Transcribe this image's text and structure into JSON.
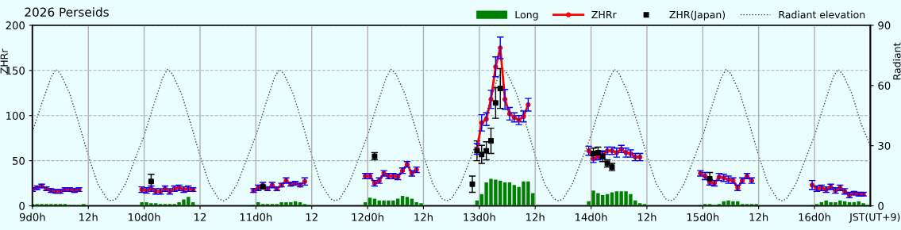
{
  "chart_data": {
    "type": "line",
    "title": "2026 Perseids",
    "ylabel": "ZHRr",
    "y2label": "Radiant",
    "xlabel": "JST(UT+9)",
    "xlim": [
      "2026-08-09T00:00",
      "2026-08-16T12:00"
    ],
    "ylim": [
      0,
      200
    ],
    "y2lim": [
      0,
      90
    ],
    "xticks": [
      {
        "value": "2026-08-09T00:00",
        "label": "9d0h"
      },
      {
        "value": "2026-08-09T12:00",
        "label": "12h"
      },
      {
        "value": "2026-08-10T00:00",
        "label": "10d0h"
      },
      {
        "value": "2026-08-10T12:00",
        "label": "12"
      },
      {
        "value": "2026-08-11T00:00",
        "label": "11d0h"
      },
      {
        "value": "2026-08-11T12:00",
        "label": "12"
      },
      {
        "value": "2026-08-12T00:00",
        "label": "12d0h"
      },
      {
        "value": "2026-08-12T12:00",
        "label": "12h"
      },
      {
        "value": "2026-08-13T00:00",
        "label": "13d0h"
      },
      {
        "value": "2026-08-13T12:00",
        "label": "12h"
      },
      {
        "value": "2026-08-14T00:00",
        "label": "14d0h"
      },
      {
        "value": "2026-08-14T12:00",
        "label": "12h"
      },
      {
        "value": "2026-08-15T00:00",
        "label": "15d0h"
      },
      {
        "value": "2026-08-15T12:00",
        "label": "12h"
      },
      {
        "value": "2026-08-16T00:00",
        "label": "16d0h"
      }
    ],
    "yticks": [
      0,
      50,
      100,
      150,
      200
    ],
    "y2ticks": [
      0,
      30,
      60,
      90
    ],
    "grid": true,
    "legend": "top right",
    "series": [
      {
        "name": "Long",
        "type": "bar",
        "color": "#008000",
        "x": [
          "2026-08-09T00:00",
          "2026-08-09T01:00",
          "2026-08-09T02:00",
          "2026-08-09T03:00",
          "2026-08-09T04:00",
          "2026-08-09T05:00",
          "2026-08-09T06:00",
          "2026-08-09T07:00",
          "2026-08-09T08:00",
          "2026-08-09T09:00",
          "2026-08-09T10:00",
          "2026-08-09T11:00",
          "2026-08-09T23:30",
          "2026-08-10T00:30",
          "2026-08-10T01:30",
          "2026-08-10T02:30",
          "2026-08-10T03:30",
          "2026-08-10T04:30",
          "2026-08-10T05:30",
          "2026-08-10T06:30",
          "2026-08-10T07:30",
          "2026-08-10T08:30",
          "2026-08-10T09:30",
          "2026-08-10T10:30",
          "2026-08-10T23:30",
          "2026-08-11T00:30",
          "2026-08-11T01:30",
          "2026-08-11T02:30",
          "2026-08-11T03:30",
          "2026-08-11T04:30",
          "2026-08-11T05:30",
          "2026-08-11T06:30",
          "2026-08-11T07:30",
          "2026-08-11T08:30",
          "2026-08-11T09:30",
          "2026-08-11T10:30",
          "2026-08-11T11:30",
          "2026-08-11T23:30",
          "2026-08-12T00:30",
          "2026-08-12T01:30",
          "2026-08-12T02:30",
          "2026-08-12T03:30",
          "2026-08-12T04:30",
          "2026-08-12T05:30",
          "2026-08-12T06:30",
          "2026-08-12T07:30",
          "2026-08-12T08:30",
          "2026-08-12T09:30",
          "2026-08-12T10:30",
          "2026-08-12T11:30",
          "2026-08-12T23:30",
          "2026-08-13T00:30",
          "2026-08-13T01:30",
          "2026-08-13T02:30",
          "2026-08-13T03:30",
          "2026-08-13T04:30",
          "2026-08-13T05:30",
          "2026-08-13T06:30",
          "2026-08-13T07:30",
          "2026-08-13T08:30",
          "2026-08-13T09:30",
          "2026-08-13T10:30",
          "2026-08-13T11:30",
          "2026-08-13T23:30",
          "2026-08-14T00:30",
          "2026-08-14T01:30",
          "2026-08-14T02:30",
          "2026-08-14T03:30",
          "2026-08-14T04:30",
          "2026-08-14T05:30",
          "2026-08-14T06:30",
          "2026-08-14T07:30",
          "2026-08-14T08:30",
          "2026-08-14T09:30",
          "2026-08-14T10:30",
          "2026-08-14T11:30",
          "2026-08-14T23:30",
          "2026-08-15T00:30",
          "2026-08-15T01:30",
          "2026-08-15T02:30",
          "2026-08-15T03:30",
          "2026-08-15T04:30",
          "2026-08-15T05:30",
          "2026-08-15T06:30",
          "2026-08-15T07:30",
          "2026-08-15T08:30",
          "2026-08-15T09:30",
          "2026-08-15T10:30",
          "2026-08-15T11:30",
          "2026-08-15T23:30",
          "2026-08-16T00:30",
          "2026-08-16T01:30",
          "2026-08-16T02:30",
          "2026-08-16T03:30",
          "2026-08-16T04:30",
          "2026-08-16T05:30",
          "2026-08-16T06:30",
          "2026-08-16T07:30",
          "2026-08-16T08:30",
          "2026-08-16T09:30",
          "2026-08-16T10:30",
          "2026-08-16T11:30"
        ],
        "values": [
          2,
          2,
          2,
          2,
          2,
          2,
          2,
          2,
          1,
          1,
          1,
          2,
          4,
          4,
          3,
          3,
          2,
          2,
          2,
          2,
          4,
          7,
          10,
          4,
          1,
          4,
          2,
          2,
          2,
          2,
          4,
          4,
          4,
          5,
          4,
          2,
          1,
          4,
          9,
          8,
          6,
          6,
          6,
          6,
          8,
          11,
          10,
          8,
          4,
          3,
          6,
          13,
          26,
          30,
          29,
          28,
          26,
          26,
          23,
          21,
          27,
          27,
          14,
          5,
          17,
          14,
          12,
          13,
          15,
          16,
          16,
          16,
          13,
          6,
          3,
          2,
          1,
          2,
          2,
          1,
          2,
          5,
          6,
          5,
          5,
          2,
          2,
          2,
          2,
          1,
          2,
          4,
          6,
          4,
          4,
          6,
          5,
          4,
          4,
          5,
          3,
          1
        ]
      },
      {
        "name": "ZHRr",
        "color": "#ff0000",
        "marker": "circle",
        "line_style": "solid",
        "x": [
          "2026-08-09T00:00",
          "2026-08-09T01:00",
          "2026-08-09T02:00",
          "2026-08-09T03:00",
          "2026-08-09T04:00",
          "2026-08-09T05:00",
          "2026-08-09T06:00",
          "2026-08-09T07:00",
          "2026-08-09T08:00",
          "2026-08-09T09:00",
          "2026-08-09T10:00",
          null,
          "2026-08-09T23:30",
          "2026-08-10T00:30",
          "2026-08-10T01:30",
          "2026-08-10T02:30",
          "2026-08-10T03:30",
          "2026-08-10T04:30",
          "2026-08-10T05:30",
          "2026-08-10T06:30",
          "2026-08-10T07:30",
          "2026-08-10T08:30",
          "2026-08-10T09:30",
          "2026-08-10T10:30",
          null,
          "2026-08-10T23:30",
          "2026-08-11T00:30",
          "2026-08-11T01:30",
          "2026-08-11T02:30",
          "2026-08-11T03:30",
          "2026-08-11T04:30",
          "2026-08-11T05:30",
          "2026-08-11T06:30",
          "2026-08-11T07:30",
          "2026-08-11T08:30",
          "2026-08-11T09:30",
          "2026-08-11T10:30",
          null,
          "2026-08-11T23:30",
          "2026-08-12T00:30",
          "2026-08-12T01:30",
          "2026-08-12T02:30",
          "2026-08-12T03:30",
          "2026-08-12T04:30",
          "2026-08-12T05:30",
          "2026-08-12T06:30",
          "2026-08-12T07:30",
          "2026-08-12T08:30",
          "2026-08-12T09:30",
          "2026-08-12T10:30",
          null,
          "2026-08-12T23:30",
          "2026-08-13T00:30",
          "2026-08-13T01:30",
          "2026-08-13T02:30",
          "2026-08-13T03:30",
          "2026-08-13T04:30",
          "2026-08-13T05:30",
          "2026-08-13T06:30",
          "2026-08-13T07:30",
          "2026-08-13T08:30",
          "2026-08-13T09:30",
          "2026-08-13T10:30",
          null,
          "2026-08-13T23:30",
          "2026-08-14T00:30",
          "2026-08-14T01:30",
          "2026-08-14T02:30",
          "2026-08-14T03:30",
          "2026-08-14T04:30",
          "2026-08-14T05:30",
          "2026-08-14T06:30",
          "2026-08-14T07:30",
          "2026-08-14T08:30",
          "2026-08-14T09:30",
          "2026-08-14T10:30",
          null,
          "2026-08-14T23:30",
          "2026-08-15T00:30",
          "2026-08-15T01:30",
          "2026-08-15T02:30",
          "2026-08-15T03:30",
          "2026-08-15T04:30",
          "2026-08-15T05:30",
          "2026-08-15T06:30",
          "2026-08-15T07:30",
          "2026-08-15T08:30",
          "2026-08-15T09:30",
          "2026-08-15T10:30",
          null,
          "2026-08-15T23:30",
          "2026-08-16T00:30",
          "2026-08-16T01:30",
          "2026-08-16T02:30",
          "2026-08-16T03:30",
          "2026-08-16T04:30",
          "2026-08-16T05:30",
          "2026-08-16T06:30",
          "2026-08-16T07:30",
          "2026-08-16T08:30",
          "2026-08-16T09:30",
          "2026-08-16T10:30"
        ],
        "values": [
          18,
          20,
          22,
          19,
          17,
          16,
          16,
          18,
          18,
          17,
          18,
          null,
          18,
          17,
          19,
          16,
          16,
          19,
          16,
          19,
          20,
          18,
          19,
          18,
          null,
          17,
          20,
          23,
          19,
          23,
          19,
          23,
          28,
          24,
          25,
          23,
          27,
          null,
          33,
          33,
          25,
          28,
          36,
          33,
          33,
          32,
          39,
          46,
          36,
          40,
          null,
          63,
          92,
          96,
          118,
          154,
          175,
          118,
          102,
          98,
          95,
          99,
          112,
          null,
          61,
          52,
          55,
          56,
          61,
          61,
          59,
          63,
          59,
          58,
          54,
          54,
          null,
          36,
          33,
          26,
          25,
          32,
          31,
          29,
          28,
          20,
          28,
          33,
          28,
          null,
          23,
          19,
          20,
          18,
          21,
          17,
          20,
          16,
          12,
          14,
          13,
          13
        ],
        "errors": [
          2,
          2,
          2,
          2,
          2,
          2,
          2,
          2,
          2,
          2,
          2,
          null,
          3,
          3,
          3,
          3,
          3,
          3,
          3,
          3,
          3,
          3,
          3,
          2,
          null,
          2,
          3,
          3,
          2,
          3,
          2,
          2,
          3,
          2,
          2,
          2,
          4,
          null,
          3,
          3,
          3,
          3,
          3,
          3,
          3,
          3,
          3,
          3,
          3,
          3,
          null,
          6,
          9,
          7,
          10,
          11,
          12,
          11,
          7,
          5,
          5,
          6,
          7,
          null,
          5,
          4,
          4,
          4,
          4,
          4,
          5,
          4,
          5,
          4,
          4,
          4,
          null,
          3,
          4,
          3,
          3,
          4,
          4,
          4,
          3,
          3,
          3,
          3,
          3,
          null,
          5,
          3,
          3,
          3,
          3,
          3,
          3,
          3,
          3,
          2,
          2,
          2
        ]
      },
      {
        "name": "ZHR(Japan)",
        "type": "scatter",
        "color": "#000000",
        "marker": "square",
        "x": [
          "2026-08-10T01:30",
          "2026-08-11T01:30",
          "2026-08-12T01:30",
          "2026-08-12T22:30",
          "2026-08-12T23:30",
          "2026-08-13T00:30",
          "2026-08-13T01:30",
          "2026-08-13T02:30",
          "2026-08-13T03:30",
          "2026-08-13T04:30",
          "2026-08-14T00:30",
          "2026-08-14T01:30",
          "2026-08-14T02:30",
          "2026-08-14T03:30",
          "2026-08-14T04:30",
          "2026-08-15T01:30"
        ],
        "values": [
          27,
          21,
          55,
          24,
          61,
          57,
          61,
          72,
          114,
          130,
          58,
          59,
          55,
          47,
          43,
          30
        ],
        "errors": [
          8,
          2,
          4,
          9,
          11,
          10,
          10,
          14,
          17,
          22,
          6,
          6,
          6,
          4,
          4,
          7
        ]
      },
      {
        "name": "Radiant elevation",
        "type": "line",
        "axis": "y2",
        "color": "#404040",
        "marker": "none",
        "line_style": "dotted",
        "x": [
          "2026-08-09T00:00",
          "2026-08-09T02:00",
          "2026-08-09T04:00",
          "2026-08-09T05:00",
          "2026-08-09T06:00",
          "2026-08-09T08:00",
          "2026-08-09T10:00",
          "2026-08-09T12:00",
          "2026-08-09T14:00",
          "2026-08-09T16:00",
          "2026-08-09T17:00",
          "2026-08-09T18:00",
          "2026-08-09T20:00",
          "2026-08-09T22:00",
          "2026-08-10T00:00",
          "2026-08-10T02:00",
          "2026-08-10T04:00",
          "2026-08-10T05:00",
          "2026-08-10T06:00",
          "2026-08-10T08:00",
          "2026-08-10T10:00",
          "2026-08-10T12:00",
          "2026-08-10T14:00",
          "2026-08-10T16:00",
          "2026-08-10T17:00",
          "2026-08-10T18:00",
          "2026-08-10T20:00",
          "2026-08-10T22:00",
          "2026-08-11T00:00",
          "2026-08-11T02:00",
          "2026-08-11T04:00",
          "2026-08-11T05:00",
          "2026-08-11T06:00",
          "2026-08-11T08:00",
          "2026-08-11T10:00",
          "2026-08-11T12:00",
          "2026-08-11T14:00",
          "2026-08-11T16:00",
          "2026-08-11T17:00",
          "2026-08-11T18:00",
          "2026-08-11T20:00",
          "2026-08-11T22:00",
          "2026-08-12T00:00",
          "2026-08-12T02:00",
          "2026-08-12T04:00",
          "2026-08-12T05:00",
          "2026-08-12T06:00",
          "2026-08-12T08:00",
          "2026-08-12T10:00",
          "2026-08-12T12:00",
          "2026-08-12T14:00",
          "2026-08-12T16:00",
          "2026-08-12T17:00",
          "2026-08-12T18:00",
          "2026-08-12T20:00",
          "2026-08-12T22:00",
          "2026-08-13T00:00",
          "2026-08-13T02:00",
          "2026-08-13T04:00",
          "2026-08-13T05:00",
          "2026-08-13T06:00",
          "2026-08-13T08:00",
          "2026-08-13T10:00",
          "2026-08-13T12:00",
          "2026-08-13T14:00",
          "2026-08-13T16:00",
          "2026-08-13T17:00",
          "2026-08-13T18:00",
          "2026-08-13T20:00",
          "2026-08-13T22:00",
          "2026-08-14T00:00",
          "2026-08-14T02:00",
          "2026-08-14T04:00",
          "2026-08-14T05:00",
          "2026-08-14T06:00",
          "2026-08-14T08:00",
          "2026-08-14T10:00",
          "2026-08-14T12:00",
          "2026-08-14T14:00",
          "2026-08-14T16:00",
          "2026-08-14T17:00",
          "2026-08-14T18:00",
          "2026-08-14T20:00",
          "2026-08-14T22:00",
          "2026-08-15T00:00",
          "2026-08-15T02:00",
          "2026-08-15T04:00",
          "2026-08-15T05:00",
          "2026-08-15T06:00",
          "2026-08-15T08:00",
          "2026-08-15T10:00",
          "2026-08-15T12:00",
          "2026-08-15T14:00",
          "2026-08-15T16:00",
          "2026-08-15T17:00",
          "2026-08-15T18:00",
          "2026-08-15T20:00",
          "2026-08-15T22:00",
          "2026-08-16T00:00",
          "2026-08-16T02:00",
          "2026-08-16T04:00",
          "2026-08-16T05:00",
          "2026-08-16T06:00",
          "2026-08-16T08:00",
          "2026-08-16T10:00",
          "2026-08-16T12:00"
        ],
        "values": [
          37,
          51,
          64,
          68,
          66,
          56,
          41,
          25,
          11,
          3.5,
          2.5,
          3.5,
          11,
          23,
          35,
          50,
          64,
          68,
          66,
          56,
          41,
          25,
          11,
          3.5,
          2.5,
          3.5,
          11,
          23,
          35,
          50,
          64,
          68,
          66,
          56,
          41,
          25,
          11,
          3.5,
          2.5,
          3.5,
          11,
          23,
          35,
          50,
          64,
          68,
          66,
          56,
          41,
          25,
          11,
          3.5,
          2.5,
          3.5,
          11,
          23,
          35,
          50,
          64,
          68,
          66,
          56,
          41,
          25,
          11,
          3.5,
          2.5,
          3.5,
          11,
          23,
          35,
          50,
          64,
          68,
          66,
          56,
          41,
          25,
          11,
          3.5,
          2.5,
          3.5,
          11,
          23,
          35,
          50,
          64,
          68,
          66,
          56,
          41,
          25,
          11,
          3.5,
          2.5,
          3.5,
          11,
          23,
          35,
          50,
          64,
          68,
          66,
          56,
          41,
          30
        ]
      }
    ]
  }
}
